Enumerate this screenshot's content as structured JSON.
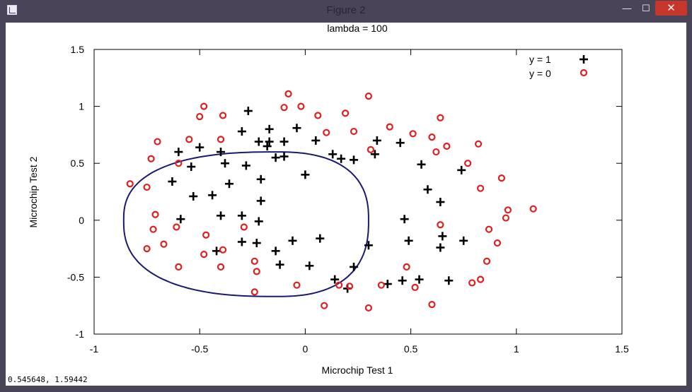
{
  "window": {
    "title": "Figure 2",
    "min_glyph": "—",
    "max_glyph": "☐",
    "close_glyph": "✕"
  },
  "statusbar": {
    "coords": "0.545648, 1.59442"
  },
  "chart_data": {
    "type": "scatter",
    "title": "lambda = 100",
    "xlabel": "Microchip Test 1",
    "ylabel": "Microchip Test 2",
    "xlim": [
      -1,
      1.5
    ],
    "ylim": [
      -1,
      1.5
    ],
    "xticks": [
      "-1",
      "-0.5",
      "0",
      "0.5",
      "1",
      "1.5"
    ],
    "yticks": [
      "-1",
      "-0.5",
      "0",
      "0.5",
      "1",
      "1.5"
    ],
    "xtick_values": [
      -1,
      -0.5,
      0,
      0.5,
      1,
      1.5
    ],
    "ytick_values": [
      -1,
      -0.5,
      0,
      0.5,
      1,
      1.5
    ],
    "grid": false,
    "legend_position": "top-right",
    "boundary_color": "#1a1a6e",
    "series": [
      {
        "name": "y = 1",
        "marker": "plus",
        "color": "#000000",
        "points": [
          [
            -0.6,
            0.6
          ],
          [
            -0.5,
            0.64
          ],
          [
            -0.54,
            0.47
          ],
          [
            -0.4,
            0.6
          ],
          [
            -0.38,
            0.5
          ],
          [
            -0.3,
            0.78
          ],
          [
            -0.27,
            0.96
          ],
          [
            -0.28,
            0.48
          ],
          [
            -0.22,
            0.69
          ],
          [
            -0.17,
            0.69
          ],
          [
            -0.17,
            0.8
          ],
          [
            -0.18,
            0.65
          ],
          [
            -0.14,
            0.55
          ],
          [
            -0.1,
            0.69
          ],
          [
            -0.1,
            0.56
          ],
          [
            -0.04,
            0.81
          ],
          [
            0.05,
            0.7
          ],
          [
            0,
            0.4
          ],
          [
            -0.21,
            0.36
          ],
          [
            -0.36,
            0.32
          ],
          [
            -0.44,
            0.22
          ],
          [
            -0.53,
            0.21
          ],
          [
            -0.63,
            0.34
          ],
          [
            -0.59,
            0.01
          ],
          [
            -0.4,
            0.04
          ],
          [
            -0.3,
            0.04
          ],
          [
            -0.21,
            0.17
          ],
          [
            -0.22,
            -0.01
          ],
          [
            -0.3,
            -0.19
          ],
          [
            -0.42,
            -0.27
          ],
          [
            -0.23,
            -0.2
          ],
          [
            -0.14,
            -0.27
          ],
          [
            -0.12,
            -0.39
          ],
          [
            -0.06,
            -0.18
          ],
          [
            0.07,
            -0.16
          ],
          [
            0.02,
            -0.4
          ],
          [
            0.14,
            -0.52
          ],
          [
            0.2,
            -0.6
          ],
          [
            0.23,
            -0.41
          ],
          [
            0.3,
            -0.22
          ],
          [
            0.13,
            0.58
          ],
          [
            0.17,
            0.54
          ],
          [
            0.23,
            0.53
          ],
          [
            0.34,
            0.7
          ],
          [
            0.33,
            0.58
          ],
          [
            0.45,
            0.68
          ],
          [
            0.47,
            0.01
          ],
          [
            0.49,
            -0.18
          ],
          [
            0.39,
            -0.56
          ],
          [
            0.46,
            -0.53
          ],
          [
            0.54,
            -0.52
          ],
          [
            0.55,
            0.49
          ],
          [
            0.58,
            0.27
          ],
          [
            0.64,
            0.16
          ],
          [
            0.64,
            -0.24
          ],
          [
            0.65,
            -0.14
          ],
          [
            0.68,
            -0.53
          ],
          [
            0.74,
            0.44
          ],
          [
            0.75,
            -0.18
          ]
        ]
      },
      {
        "name": "y = 0",
        "marker": "circle",
        "color": "#e02020",
        "points": [
          [
            -0.83,
            0.32
          ],
          [
            -0.75,
            0.29
          ],
          [
            -0.73,
            0.54
          ],
          [
            -0.7,
            0.69
          ],
          [
            -0.71,
            0.05
          ],
          [
            -0.72,
            -0.08
          ],
          [
            -0.75,
            -0.25
          ],
          [
            -0.67,
            -0.21
          ],
          [
            -0.61,
            -0.06
          ],
          [
            -0.6,
            0.5
          ],
          [
            -0.6,
            -0.41
          ],
          [
            -0.55,
            0.71
          ],
          [
            -0.5,
            0.91
          ],
          [
            -0.48,
            1
          ],
          [
            -0.4,
            0.71
          ],
          [
            -0.39,
            0.92
          ],
          [
            -0.47,
            -0.13
          ],
          [
            -0.48,
            -0.3
          ],
          [
            -0.39,
            -0.26
          ],
          [
            -0.4,
            -0.41
          ],
          [
            -0.29,
            -0.06
          ],
          [
            -0.24,
            -0.36
          ],
          [
            -0.23,
            -0.45
          ],
          [
            -0.24,
            -0.63
          ],
          [
            -0.1,
            0.99
          ],
          [
            -0.08,
            1.11
          ],
          [
            -0.02,
            1
          ],
          [
            0.06,
            0.92
          ],
          [
            0.1,
            0.77
          ],
          [
            0.19,
            0.94
          ],
          [
            0.23,
            0.78
          ],
          [
            0.3,
            1.09
          ],
          [
            0.31,
            0.62
          ],
          [
            0.4,
            0.82
          ],
          [
            0.51,
            0.76
          ],
          [
            0.6,
            0.73
          ],
          [
            0.62,
            0.6
          ],
          [
            0.64,
            0.9
          ],
          [
            0.67,
            0.65
          ],
          [
            0.77,
            0.5
          ],
          [
            0.82,
            0.67
          ],
          [
            0.83,
            0.28
          ],
          [
            0.93,
            0.37
          ],
          [
            0.95,
            0.02
          ],
          [
            0.96,
            0.09
          ],
          [
            1.08,
            0.1
          ],
          [
            0.87,
            -0.08
          ],
          [
            0.91,
            -0.2
          ],
          [
            0.86,
            -0.36
          ],
          [
            0.83,
            -0.52
          ],
          [
            0.79,
            -0.55
          ],
          [
            0.64,
            -0.04
          ],
          [
            0.48,
            -0.41
          ],
          [
            0.52,
            -0.59
          ],
          [
            0.6,
            -0.74
          ],
          [
            0.36,
            -0.57
          ],
          [
            0.3,
            -0.77
          ],
          [
            0.21,
            -0.58
          ],
          [
            0.16,
            -0.57
          ],
          [
            0.09,
            -0.75
          ],
          [
            -0.04,
            -0.57
          ]
        ]
      }
    ]
  }
}
